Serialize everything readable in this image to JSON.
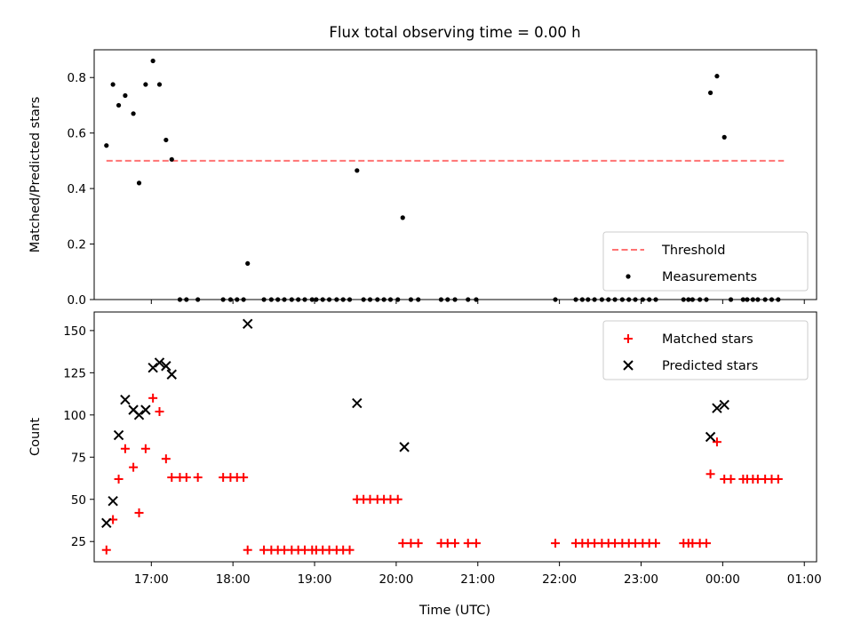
{
  "title": "Flux total observing time = 0.00 h",
  "xlabel": "Time (UTC)",
  "colors": {
    "threshold": "#ff7373",
    "matched": "#ff0000",
    "predicted": "#000000",
    "measurements": "#000000"
  },
  "chart_data": [
    {
      "type": "scatter",
      "ylabel": "Matched/Predicted stars",
      "ylim": [
        0,
        0.9
      ],
      "yticks": [
        0.0,
        0.2,
        0.4,
        0.6,
        0.8
      ],
      "ytick_labels": [
        "0.0",
        "0.2",
        "0.4",
        "0.6",
        "0.8"
      ],
      "xlim": [
        16.3,
        25.15
      ],
      "xticks": [
        17,
        18,
        19,
        20,
        21,
        22,
        23,
        24,
        25
      ],
      "xtick_labels": [
        "17:00",
        "18:00",
        "19:00",
        "20:00",
        "21:00",
        "22:00",
        "23:00",
        "00:00",
        "01:00"
      ],
      "legend": {
        "position": "lower-right",
        "entries": [
          "Threshold",
          "Measurements"
        ]
      },
      "threshold": {
        "name": "Threshold",
        "x": [
          16.45,
          24.75
        ],
        "y": 0.5
      },
      "series": [
        {
          "name": "Measurements",
          "x": [
            16.45,
            16.53,
            16.6,
            16.68,
            16.78,
            16.85,
            16.93,
            17.02,
            17.1,
            17.18,
            17.25,
            17.35,
            17.43,
            17.57,
            17.88,
            17.97,
            18.05,
            18.13,
            18.18,
            18.38,
            18.47,
            18.55,
            18.63,
            18.72,
            18.8,
            18.88,
            18.97,
            19.02,
            19.1,
            19.18,
            19.27,
            19.35,
            19.43,
            19.52,
            19.6,
            19.68,
            19.77,
            19.85,
            19.93,
            20.02,
            20.08,
            20.18,
            20.27,
            20.55,
            20.63,
            20.72,
            20.88,
            20.98,
            21.95,
            22.2,
            22.28,
            22.35,
            22.43,
            22.52,
            22.6,
            22.68,
            22.77,
            22.85,
            22.93,
            23.02,
            23.1,
            23.18,
            23.52,
            23.58,
            23.63,
            23.72,
            23.8,
            23.85,
            23.93,
            24.02,
            24.1,
            24.25,
            24.3,
            24.37,
            24.43,
            24.52,
            24.6,
            24.68
          ],
          "y": [
            0.555,
            0.775,
            0.7,
            0.735,
            0.67,
            0.42,
            0.775,
            0.86,
            0.775,
            0.575,
            0.505,
            0,
            0,
            0,
            0,
            0,
            0,
            0,
            0.13,
            0,
            0,
            0,
            0,
            0,
            0,
            0,
            0,
            0,
            0,
            0,
            0,
            0,
            0,
            0.465,
            0,
            0,
            0,
            0,
            0,
            0,
            0.295,
            0,
            0,
            0,
            0,
            0,
            0,
            0,
            0,
            0,
            0,
            0,
            0,
            0,
            0,
            0,
            0,
            0,
            0,
            0,
            0,
            0,
            0,
            0,
            0,
            0,
            0,
            0.745,
            0.805,
            0.585,
            0,
            0,
            0,
            0,
            0,
            0,
            0,
            0
          ]
        }
      ]
    },
    {
      "type": "scatter",
      "ylabel": "Count",
      "ylim": [
        13,
        161
      ],
      "yticks": [
        25,
        50,
        75,
        100,
        125,
        150
      ],
      "ytick_labels": [
        "25",
        "50",
        "75",
        "100",
        "125",
        "150"
      ],
      "xlim": [
        16.3,
        25.15
      ],
      "xticks": [
        17,
        18,
        19,
        20,
        21,
        22,
        23,
        24,
        25
      ],
      "xtick_labels": [
        "17:00",
        "18:00",
        "19:00",
        "20:00",
        "21:00",
        "22:00",
        "23:00",
        "00:00",
        "01:00"
      ],
      "xlabel": "Time (UTC)",
      "legend": {
        "position": "top-right",
        "entries": [
          "Matched stars",
          "Predicted stars"
        ]
      },
      "series": [
        {
          "name": "Matched stars",
          "marker": "plus",
          "x": [
            16.45,
            16.53,
            16.6,
            16.68,
            16.78,
            16.85,
            16.93,
            17.02,
            17.1,
            17.18,
            17.25,
            17.35,
            17.43,
            17.57,
            17.88,
            17.97,
            18.05,
            18.13,
            18.18,
            18.38,
            18.47,
            18.55,
            18.63,
            18.72,
            18.8,
            18.88,
            18.97,
            19.02,
            19.1,
            19.18,
            19.27,
            19.35,
            19.43,
            19.52,
            19.6,
            19.68,
            19.77,
            19.85,
            19.93,
            20.02,
            20.08,
            20.18,
            20.27,
            20.55,
            20.63,
            20.72,
            20.88,
            20.98,
            21.95,
            22.2,
            22.28,
            22.35,
            22.43,
            22.52,
            22.6,
            22.68,
            22.77,
            22.85,
            22.93,
            23.02,
            23.1,
            23.18,
            23.52,
            23.58,
            23.63,
            23.72,
            23.8,
            23.85,
            23.93,
            24.02,
            24.1,
            24.25,
            24.3,
            24.37,
            24.43,
            24.52,
            24.6,
            24.68
          ],
          "y": [
            20,
            38,
            62,
            80,
            69,
            42,
            80,
            110,
            102,
            74,
            63,
            63,
            63,
            63,
            63,
            63,
            63,
            63,
            20,
            20,
            20,
            20,
            20,
            20,
            20,
            20,
            20,
            20,
            20,
            20,
            20,
            20,
            20,
            50,
            50,
            50,
            50,
            50,
            50,
            50,
            24,
            24,
            24,
            24,
            24,
            24,
            24,
            24,
            24,
            24,
            24,
            24,
            24,
            24,
            24,
            24,
            24,
            24,
            24,
            24,
            24,
            24,
            24,
            24,
            24,
            24,
            24,
            65,
            84,
            62,
            62,
            62,
            62,
            62,
            62,
            62,
            62,
            62
          ]
        },
        {
          "name": "Predicted stars",
          "marker": "x",
          "x": [
            16.45,
            16.53,
            16.6,
            16.68,
            16.78,
            16.85,
            16.93,
            17.02,
            17.1,
            17.18,
            17.25,
            18.18,
            19.52,
            20.1,
            23.85,
            23.93,
            24.02
          ],
          "y": [
            36,
            49,
            88,
            109,
            103,
            100,
            103,
            128,
            131,
            129,
            124,
            154,
            107,
            81,
            87,
            104,
            106
          ]
        }
      ]
    }
  ]
}
